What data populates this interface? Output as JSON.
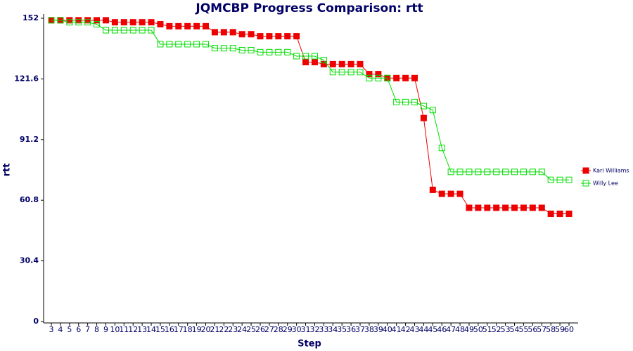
{
  "chart_data": {
    "type": "line",
    "title": "JQMCBP Progress Comparison: rtt",
    "xlabel": "Step",
    "ylabel": "rtt",
    "categories": [
      "3",
      "4",
      "5",
      "6",
      "7",
      "8",
      "9",
      "10",
      "11",
      "12",
      "13",
      "14",
      "15",
      "16",
      "17",
      "18",
      "19",
      "20",
      "21",
      "22",
      "23",
      "24",
      "25",
      "26",
      "27",
      "28",
      "29",
      "30",
      "31",
      "32",
      "33",
      "34",
      "35",
      "36",
      "37",
      "38",
      "39",
      "40",
      "41",
      "42",
      "43",
      "44",
      "45",
      "46",
      "47",
      "48",
      "49",
      "50",
      "51",
      "52",
      "53",
      "54",
      "55",
      "56",
      "57",
      "58",
      "59",
      "60"
    ],
    "series": [
      {
        "name": "Kari Williams",
        "color": "#ee0000",
        "marker": "filled-square",
        "values": [
          151,
          151,
          151,
          151,
          151,
          151,
          151,
          150,
          150,
          150,
          150,
          150,
          149,
          148,
          148,
          148,
          148,
          148,
          145,
          145,
          145,
          144,
          144,
          143,
          143,
          143,
          143,
          143,
          130,
          130,
          129,
          129,
          129,
          129,
          129,
          124,
          124,
          122,
          122,
          122,
          122,
          102,
          66,
          64,
          64,
          64,
          57,
          57,
          57,
          57,
          57,
          57,
          57,
          57,
          57,
          54,
          54,
          54
        ]
      },
      {
        "name": "Willy Lee",
        "color": "#00dd00",
        "marker": "hollow-square",
        "values": [
          151,
          151,
          150,
          150,
          150,
          149,
          146,
          146,
          146,
          146,
          146,
          146,
          139,
          139,
          139,
          139,
          139,
          139,
          137,
          137,
          137,
          136,
          136,
          135,
          135,
          135,
          135,
          133,
          133,
          133,
          131,
          125,
          125,
          125,
          125,
          122,
          122,
          122,
          110,
          110,
          110,
          108,
          106,
          87,
          75,
          75,
          75,
          75,
          75,
          75,
          75,
          75,
          75,
          75,
          75,
          71,
          71,
          71
        ]
      }
    ],
    "ylim": [
      0,
      152
    ],
    "yticks": [
      0,
      30.4,
      60.8,
      91.2,
      121.6,
      152
    ],
    "grid": false,
    "legend": "right"
  }
}
